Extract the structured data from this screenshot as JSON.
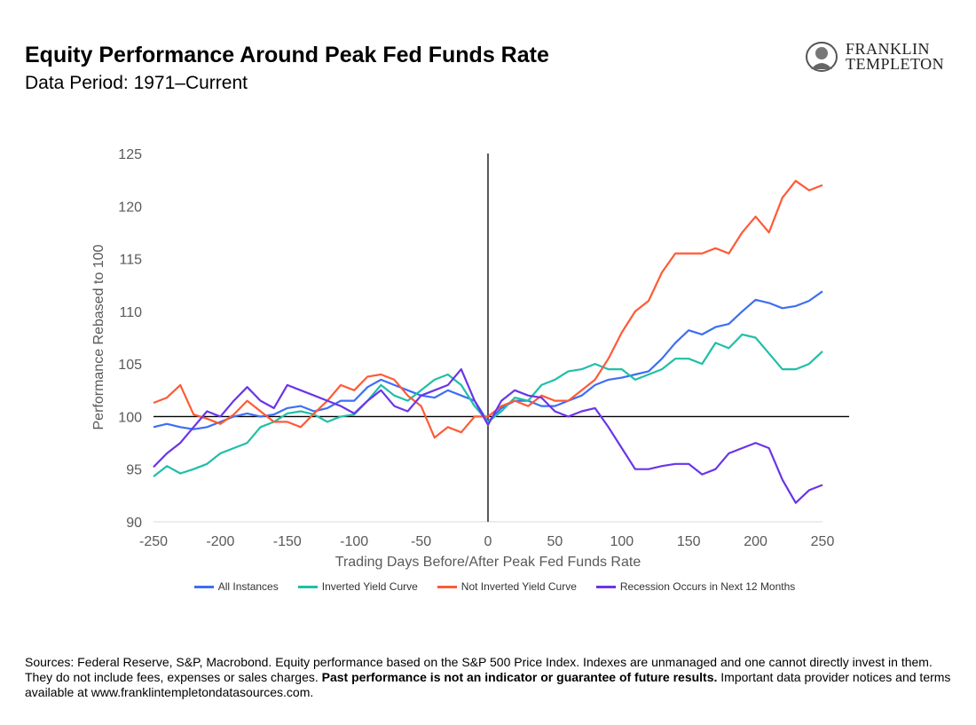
{
  "header": {
    "title": "Equity Performance Around Peak Fed Funds Rate",
    "subtitle": "Data Period: 1971–Current",
    "logo": "FRANKLIN TEMPLETON"
  },
  "footnote": {
    "text1": "Sources: Federal Reserve, S&P, Macrobond. Equity performance based on the S&P 500 Price Index. Indexes are unmanaged and one cannot directly invest in them. They do not include fees, expenses or sales charges. ",
    "bold": "Past performance is not an indicator or guarantee of future results.",
    "text2": " Important data provider notices and terms available at www.franklintempletondatasources.com."
  },
  "chart_data": {
    "type": "line",
    "title": "",
    "xlabel": "Trading Days Before/After Peak Fed Funds Rate",
    "ylabel": "Performance Rebased to 100",
    "xlim": [
      -250,
      250
    ],
    "ylim": [
      90,
      125
    ],
    "xticks": [
      -250,
      -200,
      -150,
      -100,
      -50,
      0,
      50,
      100,
      150,
      200,
      250
    ],
    "yticks": [
      90,
      95,
      100,
      105,
      110,
      115,
      120,
      125
    ],
    "grid": false,
    "legend": "bottom",
    "x": [
      -250,
      -240,
      -230,
      -220,
      -210,
      -200,
      -190,
      -180,
      -170,
      -160,
      -150,
      -140,
      -130,
      -120,
      -110,
      -100,
      -90,
      -80,
      -70,
      -60,
      -50,
      -40,
      -30,
      -20,
      -10,
      0,
      10,
      20,
      30,
      40,
      50,
      60,
      70,
      80,
      90,
      100,
      110,
      120,
      130,
      140,
      150,
      160,
      170,
      180,
      190,
      200,
      210,
      220,
      230,
      240,
      250
    ],
    "series": [
      {
        "name": "All Instances",
        "color": "#3d6ef5",
        "values": [
          99,
          99.3,
          99,
          98.8,
          99,
          99.5,
          100,
          100.3,
          100,
          100.2,
          100.8,
          101,
          100.5,
          100.8,
          101.5,
          101.5,
          102.8,
          103.5,
          103,
          102.5,
          102,
          101.8,
          102.5,
          102,
          101.5,
          99.5,
          100.8,
          101.5,
          101.5,
          101,
          101,
          101.5,
          102,
          103,
          103.5,
          103.7,
          104,
          104.3,
          105.5,
          107,
          108.2,
          107.8,
          108.5,
          108.8,
          110,
          111.1,
          110.8,
          110.3,
          110.5,
          111,
          111.9
        ]
      },
      {
        "name": "Inverted Yield Curve",
        "color": "#1fbfa8",
        "values": [
          94.3,
          95.3,
          94.6,
          95,
          95.5,
          96.5,
          97,
          97.5,
          99,
          99.5,
          100.3,
          100.5,
          100.2,
          99.5,
          100,
          100.2,
          101.5,
          103,
          102,
          101.5,
          102.5,
          103.5,
          104,
          103,
          101,
          99.5,
          100.5,
          101.8,
          101.5,
          103,
          103.5,
          104.3,
          104.5,
          105,
          104.5,
          104.5,
          103.5,
          104,
          104.5,
          105.5,
          105.5,
          105,
          107,
          106.5,
          107.8,
          107.5,
          106,
          104.5,
          104.5,
          105,
          106.2
        ]
      },
      {
        "name": "Not Inverted Yield Curve",
        "color": "#ff5a36",
        "values": [
          101.3,
          101.8,
          103,
          100.2,
          99.8,
          99.3,
          100.2,
          101.5,
          100.5,
          99.5,
          99.5,
          99,
          100.3,
          101.5,
          103,
          102.5,
          103.8,
          104,
          103.5,
          102,
          101,
          98,
          99,
          98.5,
          100,
          100,
          101,
          101.5,
          101,
          102,
          101.5,
          101.5,
          102.5,
          103.5,
          105.5,
          108,
          110,
          111,
          113.7,
          115.5,
          115.5,
          115.5,
          116,
          115.5,
          117.5,
          119,
          117.5,
          120.8,
          122.4,
          121.5,
          122
        ]
      },
      {
        "name": "Recession Occurs in Next 12 Months",
        "color": "#6a35e8",
        "values": [
          95.2,
          96.5,
          97.5,
          99,
          100.5,
          100,
          101.5,
          102.8,
          101.5,
          100.8,
          103,
          102.5,
          102,
          101.5,
          101,
          100.3,
          101.5,
          102.5,
          101,
          100.5,
          102,
          102.5,
          103,
          104.5,
          101.5,
          99.2,
          101.5,
          102.5,
          102,
          101.8,
          100.5,
          100,
          100.5,
          100.8,
          99,
          97,
          95,
          95,
          95.3,
          95.5,
          95.5,
          94.5,
          95,
          96.5,
          97,
          97.5,
          97,
          94,
          91.8,
          93,
          93.5
        ]
      }
    ]
  }
}
